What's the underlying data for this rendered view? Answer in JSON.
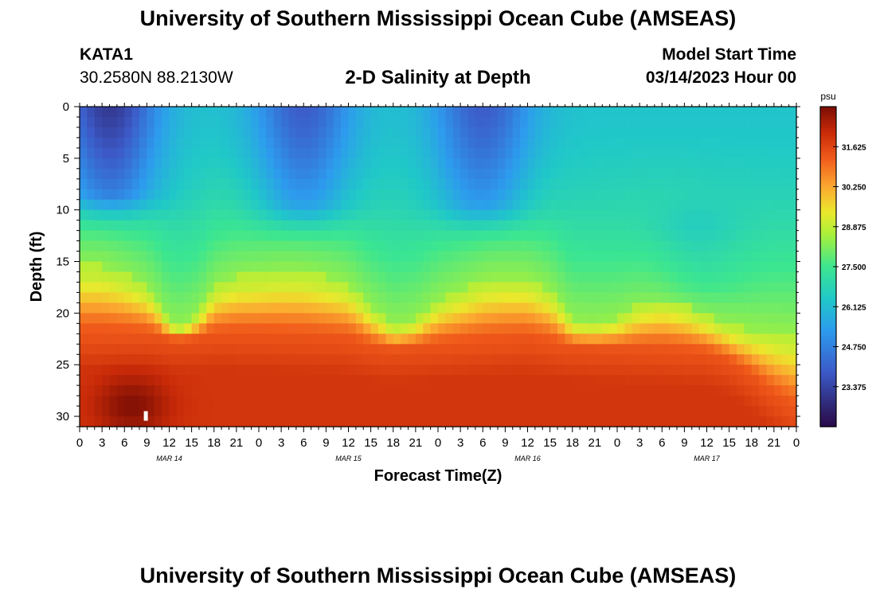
{
  "header": {
    "title": "University of Southern Mississippi Ocean Cube (AMSEAS)",
    "station": "KATA1",
    "coordinates": "30.2580N  88.2130W",
    "plot_title": "2-D Salinity at Depth",
    "model_start_label": "Model Start Time",
    "model_start_value": "03/14/2023 Hour 00"
  },
  "footer": {
    "title": "University of Southern Mississippi Ocean Cube (AMSEAS)"
  },
  "chart_data": {
    "type": "heatmap",
    "title": "2-D Salinity at Depth",
    "xlabel": "Forecast Time(Z)",
    "ylabel": "Depth (ft)",
    "x_range": [
      0,
      96
    ],
    "y_range": [
      0,
      31
    ],
    "x_tick_values": [
      0,
      3,
      6,
      9,
      12,
      15,
      18,
      21,
      24,
      27,
      30,
      33,
      36,
      39,
      42,
      45,
      48,
      51,
      54,
      57,
      60,
      63,
      66,
      69,
      72,
      75,
      78,
      81,
      84,
      87,
      90,
      93,
      96
    ],
    "x_tick_labels": [
      "0",
      "3",
      "6",
      "9",
      "12",
      "15",
      "18",
      "21",
      "0",
      "3",
      "6",
      "9",
      "12",
      "15",
      "18",
      "21",
      "0",
      "3",
      "6",
      "9",
      "12",
      "15",
      "18",
      "21",
      "0",
      "3",
      "6",
      "9",
      "12",
      "15",
      "18",
      "21",
      "0"
    ],
    "date_labels": [
      {
        "hour": 12,
        "label": "MAR 14"
      },
      {
        "hour": 36,
        "label": "MAR 15"
      },
      {
        "hour": 60,
        "label": "MAR 16"
      },
      {
        "hour": 84,
        "label": "MAR 17"
      }
    ],
    "y_tick_values": [
      0,
      5,
      10,
      15,
      20,
      25,
      30
    ],
    "y_tick_labels": [
      "0",
      "5",
      "10",
      "15",
      "20",
      "25",
      "30"
    ],
    "colorbar": {
      "unit": "psu",
      "range": [
        22.0,
        33.0
      ],
      "tick_values": [
        31.625,
        30.25,
        28.875,
        27.5,
        26.125,
        24.75,
        23.375
      ],
      "tick_labels": [
        "31.625",
        "30.250",
        "28.875",
        "27.500",
        "26.125",
        "24.750",
        "23.375"
      ]
    },
    "halocline_depth_ft": {
      "hours": [
        0,
        3,
        6,
        9,
        10.5,
        12,
        13.5,
        15,
        16.5,
        18,
        21,
        24,
        27,
        30,
        33,
        36,
        39,
        42,
        45,
        48,
        51,
        54,
        57,
        60,
        63,
        66,
        69,
        72,
        75,
        78,
        81,
        84,
        87,
        90,
        93,
        96
      ],
      "values": [
        15.5,
        15.5,
        16.3,
        17.5,
        19.0,
        21.0,
        21.3,
        20.8,
        19.5,
        17.5,
        16.5,
        16.3,
        16.0,
        16.0,
        16.5,
        17.2,
        19.5,
        21.3,
        20.7,
        18.8,
        17.8,
        16.8,
        16.5,
        16.6,
        17.8,
        20.8,
        21.0,
        20.5,
        19.2,
        18.6,
        19.2,
        20.3,
        21.2,
        21.6,
        21.8,
        22.0
      ]
    },
    "deep_layer_top_ft": {
      "hours": [
        0,
        9,
        12,
        15,
        18,
        24,
        36,
        39,
        42,
        48,
        60,
        63,
        66,
        72,
        84,
        87,
        90,
        93,
        96
      ],
      "values": [
        22.5,
        22.5,
        22.8,
        22.8,
        22.5,
        22.6,
        23.0,
        23.6,
        23.8,
        23.5,
        23.0,
        23.3,
        23.6,
        23.8,
        24.2,
        25.0,
        26.5,
        28.5,
        30.0
      ]
    },
    "surface_fresh_maxima": [
      {
        "hour": 4,
        "depth_top_ft": 0,
        "depth_bottom_ft": 8,
        "salinity_psu": 23.4
      },
      {
        "hour": 30,
        "depth_top_ft": 0,
        "depth_bottom_ft": 9,
        "salinity_psu": 24.2
      },
      {
        "hour": 54,
        "depth_top_ft": 0,
        "depth_bottom_ft": 9,
        "salinity_psu": 24.2
      },
      {
        "hour": 82,
        "depth_top_ft": 12,
        "depth_bottom_ft": 17,
        "salinity_psu": 26.0
      }
    ],
    "near_bottom_max": {
      "hour": 7,
      "depth_ft": 29,
      "salinity_psu": 32.8
    }
  }
}
